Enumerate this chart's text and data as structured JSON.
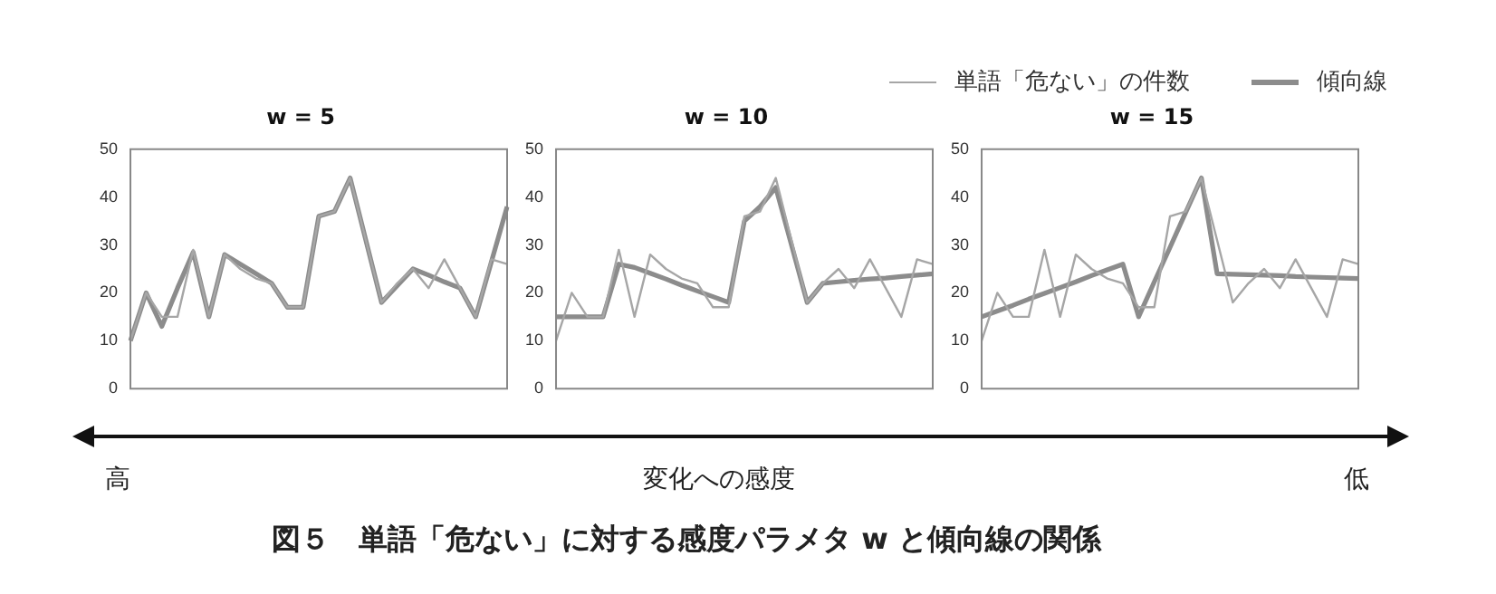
{
  "chart_data": [
    {
      "type": "line",
      "title": "w = 5",
      "categories": [
        null,
        null,
        null,
        null,
        null,
        null,
        null,
        null,
        null,
        null,
        null,
        null,
        null,
        null,
        null,
        null,
        null,
        null,
        null,
        null,
        null,
        null,
        null,
        null,
        null
      ],
      "ylim": [
        0,
        50
      ],
      "yticks": [
        0,
        10,
        20,
        30,
        40,
        50
      ],
      "tick_labels": "y",
      "marker": "none",
      "legend": "top right",
      "series": [
        {
          "name": "単語「危ない」の件数",
          "color": "#a6a6a6",
          "values": [
            10,
            20,
            15,
            15,
            29,
            15,
            28,
            25,
            23,
            22,
            17,
            17,
            36,
            37,
            44,
            31,
            18,
            22,
            25,
            21,
            27,
            21,
            15,
            27,
            26
          ]
        },
        {
          "name": "傾向線",
          "color": "#8c8c8c",
          "values": [
            10,
            20,
            13,
            21,
            28.5,
            15,
            28,
            26,
            24,
            22,
            17,
            17,
            36,
            37,
            44,
            31,
            18,
            21.5,
            25,
            23.7,
            22.3,
            21,
            15,
            26.5,
            38
          ]
        }
      ]
    },
    {
      "type": "line",
      "title": "w = 10",
      "categories": [
        null,
        null,
        null,
        null,
        null,
        null,
        null,
        null,
        null,
        null,
        null,
        null,
        null,
        null,
        null,
        null,
        null,
        null,
        null,
        null,
        null,
        null,
        null,
        null,
        null
      ],
      "ylim": [
        0,
        50
      ],
      "yticks": [
        0,
        10,
        20,
        30,
        40,
        50
      ],
      "tick_labels": "y",
      "marker": "none",
      "annotations": [
        "高",
        "変化への感度",
        "低",
        "図５　単語「危ない」に対する感度パラメタ w と傾向線の関係"
      ],
      "series": [
        {
          "color": "#a6a6a6",
          "values": [
            10,
            20,
            15,
            15,
            29,
            15,
            28,
            25,
            23,
            22,
            17,
            17,
            36,
            37,
            44,
            31,
            18,
            22,
            25,
            21,
            27,
            21,
            15,
            27,
            26
          ]
        },
        {
          "color": "#8c8c8c",
          "values": [
            15,
            15,
            15,
            15,
            26,
            25.3,
            24.1,
            22.9,
            21.6,
            20.4,
            19.2,
            18,
            35,
            38,
            42,
            30,
            18,
            22,
            22.3,
            22.6,
            22.9,
            23.1,
            23.4,
            23.7,
            24
          ]
        }
      ]
    },
    {
      "type": "line",
      "title": "w = 15",
      "categories": [
        null,
        null,
        null,
        null,
        null,
        null,
        null,
        null,
        null,
        null,
        null,
        null,
        null,
        null,
        null,
        null,
        null,
        null,
        null,
        null,
        null,
        null,
        null,
        null,
        null
      ],
      "ylim": [
        0,
        50
      ],
      "yticks": [
        0,
        10,
        20,
        30,
        40,
        50
      ],
      "tick_labels": "y",
      "marker": "none",
      "series": [
        {
          "color": "#a6a6a6",
          "values": [
            10,
            20,
            15,
            15,
            29,
            15,
            28,
            25,
            23,
            22,
            17,
            17,
            36,
            37,
            44,
            31,
            18,
            22,
            25,
            21,
            27,
            21,
            15,
            27,
            26
          ]
        },
        {
          "color": "#8c8c8c",
          "values": [
            15,
            16.2,
            17.4,
            18.7,
            19.9,
            21.1,
            22.3,
            23.6,
            24.8,
            26,
            15,
            22.3,
            29.5,
            36.8,
            44,
            24,
            23.9,
            23.8,
            23.7,
            23.6,
            23.4,
            23.3,
            23.2,
            23.1,
            23
          ]
        }
      ]
    }
  ]
}
